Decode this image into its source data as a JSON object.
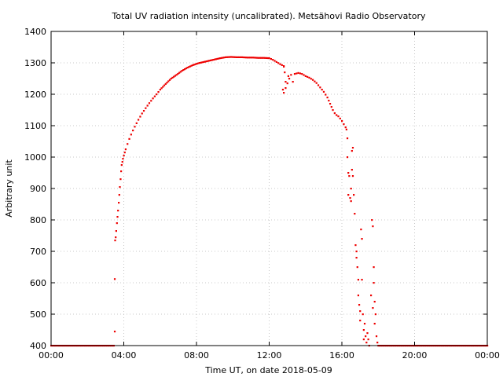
{
  "chart_data": {
    "type": "scatter",
    "title": "Total UV radiation intensity (uncalibrated). Metsähovi Radio Observatory",
    "xlabel": "Time UT, on date 2018-05-09",
    "ylabel": "Arbitrary unit",
    "xlim": [
      0,
      24
    ],
    "ylim": [
      400,
      1400
    ],
    "x_units": "hours UT",
    "x_ticks": [
      0,
      4,
      8,
      12,
      16,
      20,
      24
    ],
    "x_tick_labels": [
      "00:00",
      "04:00",
      "08:00",
      "12:00",
      "16:00",
      "20:00",
      "00:00"
    ],
    "y_ticks": [
      400,
      500,
      600,
      700,
      800,
      900,
      1000,
      1100,
      1200,
      1300,
      1400
    ],
    "y_tick_labels": [
      "400",
      "500",
      "600",
      "700",
      "800",
      "900",
      "1000",
      "1100",
      "1200",
      "1300",
      "1400"
    ],
    "grid": true,
    "legend": "none",
    "point_color": "#ee0000",
    "series": [
      {
        "values_xy": [
          [
            0.0,
            400
          ],
          [
            1.0,
            400
          ],
          [
            2.0,
            400
          ],
          [
            3.0,
            400
          ],
          [
            3.45,
            400
          ],
          [
            3.5,
            445
          ],
          [
            3.5,
            612
          ],
          [
            3.52,
            735
          ],
          [
            3.55,
            745
          ],
          [
            3.58,
            765
          ],
          [
            3.62,
            790
          ],
          [
            3.65,
            810
          ],
          [
            3.68,
            830
          ],
          [
            3.72,
            855
          ],
          [
            3.75,
            880
          ],
          [
            3.78,
            905
          ],
          [
            3.82,
            930
          ],
          [
            3.85,
            955
          ],
          [
            3.88,
            975
          ],
          [
            3.92,
            985
          ],
          [
            3.95,
            995
          ],
          [
            4.0,
            1005
          ],
          [
            4.05,
            1015
          ],
          [
            4.1,
            1025
          ],
          [
            4.2,
            1042
          ],
          [
            4.3,
            1058
          ],
          [
            4.4,
            1072
          ],
          [
            4.5,
            1085
          ],
          [
            4.6,
            1097
          ],
          [
            4.7,
            1108
          ],
          [
            4.8,
            1119
          ],
          [
            4.9,
            1129
          ],
          [
            5.0,
            1139
          ],
          [
            5.2,
            1156
          ],
          [
            5.4,
            1172
          ],
          [
            5.6,
            1187
          ],
          [
            5.8,
            1200
          ],
          [
            6.0,
            1215
          ],
          [
            6.3,
            1233
          ],
          [
            6.6,
            1250
          ],
          [
            6.9,
            1262
          ],
          [
            7.2,
            1275
          ],
          [
            7.5,
            1285
          ],
          [
            7.8,
            1293
          ],
          [
            8.1,
            1299
          ],
          [
            8.4,
            1303
          ],
          [
            8.7,
            1307
          ],
          [
            9.0,
            1311
          ],
          [
            9.3,
            1315
          ],
          [
            9.6,
            1318
          ],
          [
            9.9,
            1319
          ],
          [
            10.2,
            1318
          ],
          [
            10.5,
            1318
          ],
          [
            10.8,
            1317
          ],
          [
            11.1,
            1317
          ],
          [
            11.4,
            1316
          ],
          [
            11.7,
            1316
          ],
          [
            12.0,
            1315
          ],
          [
            12.2,
            1310
          ],
          [
            12.4,
            1303
          ],
          [
            12.6,
            1296
          ],
          [
            12.8,
            1290
          ],
          [
            12.8,
            1288
          ],
          [
            12.85,
            1270
          ],
          [
            12.9,
            1240
          ],
          [
            12.75,
            1215
          ],
          [
            12.8,
            1205
          ],
          [
            13.0,
            1235
          ],
          [
            13.05,
            1258
          ],
          [
            13.1,
            1250
          ],
          [
            13.2,
            1262
          ],
          [
            13.3,
            1240
          ],
          [
            13.4,
            1265
          ],
          [
            13.6,
            1268
          ],
          [
            13.8,
            1265
          ],
          [
            14.0,
            1258
          ],
          [
            14.2,
            1253
          ],
          [
            14.4,
            1246
          ],
          [
            14.6,
            1236
          ],
          [
            14.8,
            1222
          ],
          [
            15.0,
            1208
          ],
          [
            15.2,
            1190
          ],
          [
            15.35,
            1170
          ],
          [
            15.5,
            1150
          ],
          [
            15.6,
            1140
          ],
          [
            15.7,
            1134
          ],
          [
            15.8,
            1130
          ],
          [
            15.9,
            1123
          ],
          [
            16.0,
            1115
          ],
          [
            16.1,
            1105
          ],
          [
            16.2,
            1095
          ],
          [
            16.25,
            1088
          ],
          [
            16.3,
            1060
          ],
          [
            16.3,
            1000
          ],
          [
            16.35,
            950
          ],
          [
            16.35,
            880
          ],
          [
            16.4,
            940
          ],
          [
            16.45,
            870
          ],
          [
            16.5,
            900
          ],
          [
            16.5,
            860
          ],
          [
            16.55,
            1020
          ],
          [
            16.6,
            1030
          ],
          [
            16.55,
            960
          ],
          [
            16.6,
            940
          ],
          [
            16.65,
            880
          ],
          [
            16.7,
            820
          ],
          [
            16.75,
            720
          ],
          [
            16.8,
            700
          ],
          [
            16.8,
            680
          ],
          [
            16.85,
            650
          ],
          [
            16.9,
            610
          ],
          [
            16.9,
            560
          ],
          [
            16.95,
            530
          ],
          [
            17.0,
            510
          ],
          [
            17.0,
            480
          ],
          [
            17.05,
            770
          ],
          [
            17.1,
            740
          ],
          [
            17.1,
            610
          ],
          [
            17.15,
            500
          ],
          [
            17.2,
            450
          ],
          [
            17.2,
            420
          ],
          [
            17.25,
            470
          ],
          [
            17.3,
            430
          ],
          [
            17.35,
            410
          ],
          [
            17.4,
            440
          ],
          [
            17.45,
            420
          ],
          [
            17.5,
            400
          ],
          [
            17.6,
            560
          ],
          [
            17.65,
            800
          ],
          [
            17.7,
            780
          ],
          [
            17.7,
            520
          ],
          [
            17.75,
            650
          ],
          [
            17.75,
            600
          ],
          [
            17.8,
            540
          ],
          [
            17.8,
            470
          ],
          [
            17.85,
            500
          ],
          [
            17.9,
            430
          ],
          [
            17.95,
            410
          ],
          [
            18.0,
            400
          ],
          [
            19.0,
            400
          ],
          [
            20.0,
            400
          ],
          [
            21.0,
            400
          ],
          [
            22.0,
            400
          ],
          [
            23.0,
            400
          ],
          [
            24.0,
            400
          ]
        ]
      }
    ]
  }
}
